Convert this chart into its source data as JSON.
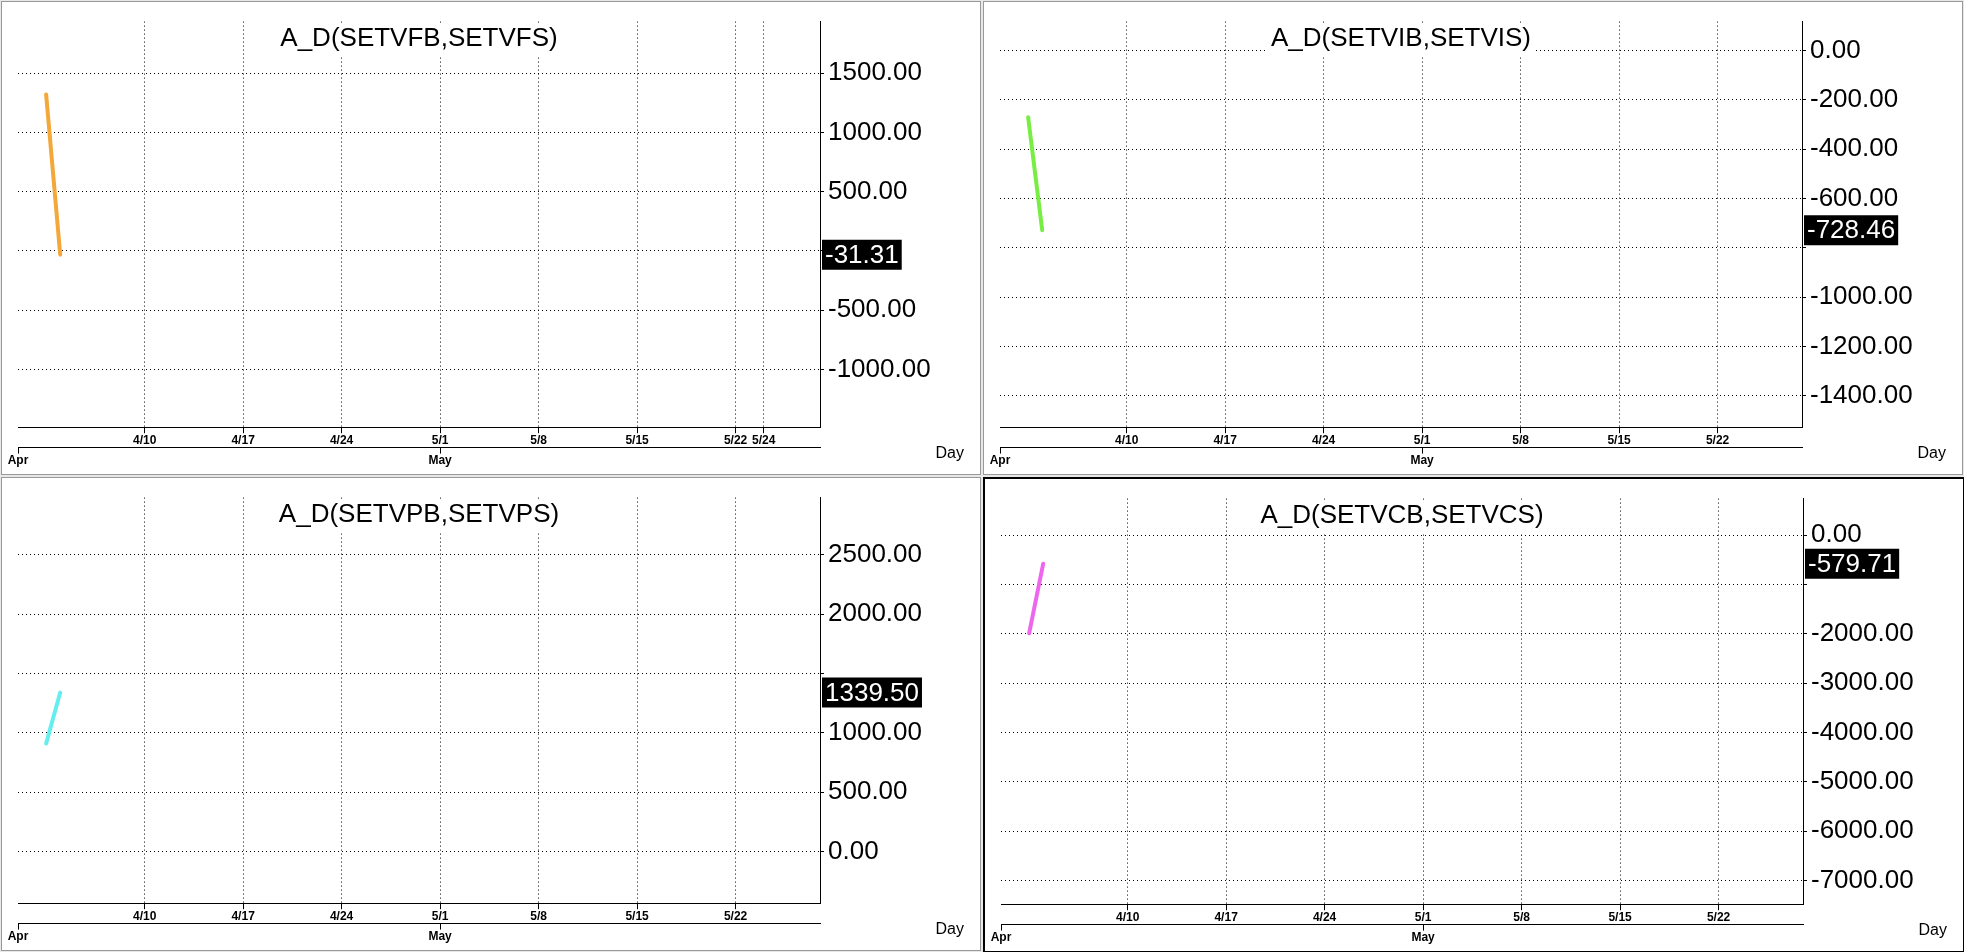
{
  "chart_data": [
    {
      "type": "line",
      "title": "A_D(SETVFB,SETVFS)",
      "xlabel": "Day",
      "x": [
        "--04-03",
        "--04-04"
      ],
      "series": [
        {
          "color": "#f4a83a",
          "values": [
            1320,
            -31.31
          ]
        }
      ],
      "annotations": [
        "-31.31"
      ],
      "xlim": [
        "--04-01",
        "--05-28"
      ],
      "xticks": [
        {
          "value": "--04-10",
          "label": "4/10"
        },
        {
          "value": "--04-17",
          "label": "4/17"
        },
        {
          "value": "--04-24",
          "label": "4/24"
        },
        {
          "value": "--05-01",
          "label": "5/1"
        },
        {
          "value": "--05-08",
          "label": "5/8"
        },
        {
          "value": "--05-15",
          "label": "5/15"
        },
        {
          "value": "--05-22",
          "label": "5/22"
        },
        {
          "value": "--05-24",
          "label": "5/24"
        }
      ],
      "x2lim": [
        "--04-01",
        "--05-28"
      ],
      "x2ticks": [
        {
          "value": "--04-01",
          "label": "Apr"
        },
        {
          "value": "--05-01",
          "label": "May"
        }
      ],
      "ylim": [
        -1487,
        1935
      ],
      "yticks": [
        {
          "value": 1500,
          "label": "1500.00"
        },
        {
          "value": 1000,
          "label": "1000.00"
        },
        {
          "value": 500,
          "label": "500.00"
        },
        {
          "value": 0,
          "label": null
        },
        {
          "value": -500,
          "label": "-500.00"
        },
        {
          "value": -1000,
          "label": "-1000.00"
        }
      ],
      "grid": true,
      "legend": false,
      "marker": "none",
      "line_style": "solid"
    },
    {
      "type": "line",
      "title": "A_D(SETVIB,SETVIS)",
      "xlabel": "Day",
      "x": [
        "--04-03",
        "--04-04"
      ],
      "series": [
        {
          "color": "#77ee44",
          "values": [
            -270,
            -728.46
          ]
        }
      ],
      "annotations": [
        "-728.46"
      ],
      "xlim": [
        "--04-01",
        "--05-28"
      ],
      "xticks": [
        {
          "value": "--04-10",
          "label": "4/10"
        },
        {
          "value": "--04-17",
          "label": "4/17"
        },
        {
          "value": "--04-24",
          "label": "4/24"
        },
        {
          "value": "--05-01",
          "label": "5/1"
        },
        {
          "value": "--05-08",
          "label": "5/8"
        },
        {
          "value": "--05-15",
          "label": "5/15"
        },
        {
          "value": "--05-22",
          "label": "5/22"
        }
      ],
      "x2lim": [
        "--04-01",
        "--05-28"
      ],
      "x2ticks": [
        {
          "value": "--04-01",
          "label": "Apr"
        },
        {
          "value": "--05-01",
          "label": "May"
        }
      ],
      "ylim": [
        -1528,
        118
      ],
      "yticks": [
        {
          "value": 0,
          "label": "0.00"
        },
        {
          "value": -200,
          "label": "-200.00"
        },
        {
          "value": -400,
          "label": "-400.00"
        },
        {
          "value": -600,
          "label": "-600.00"
        },
        {
          "value": -800,
          "label": null
        },
        {
          "value": -1000,
          "label": "-1000.00"
        },
        {
          "value": -1200,
          "label": "-1200.00"
        },
        {
          "value": -1400,
          "label": "-1400.00"
        }
      ],
      "grid": true,
      "legend": false,
      "marker": "none",
      "line_style": "solid"
    },
    {
      "type": "line",
      "title": "A_D(SETVPB,SETVPS)",
      "xlabel": "Day",
      "x": [
        "--04-03",
        "--04-04"
      ],
      "series": [
        {
          "color": "#66eeee",
          "values": [
            910,
            1339.5
          ]
        }
      ],
      "annotations": [
        "1339.50"
      ],
      "xlim": [
        "--04-01",
        "--05-28"
      ],
      "xticks": [
        {
          "value": "--04-10",
          "label": "4/10"
        },
        {
          "value": "--04-17",
          "label": "4/17"
        },
        {
          "value": "--04-24",
          "label": "4/24"
        },
        {
          "value": "--05-01",
          "label": "5/1"
        },
        {
          "value": "--05-08",
          "label": "5/8"
        },
        {
          "value": "--05-15",
          "label": "5/15"
        },
        {
          "value": "--05-22",
          "label": "5/22"
        }
      ],
      "x2lim": [
        "--04-01",
        "--05-28"
      ],
      "x2ticks": [
        {
          "value": "--04-01",
          "label": "Apr"
        },
        {
          "value": "--05-01",
          "label": "May"
        }
      ],
      "ylim": [
        -436,
        2983
      ],
      "yticks": [
        {
          "value": 2500,
          "label": "2500.00"
        },
        {
          "value": 2000,
          "label": "2000.00"
        },
        {
          "value": 1500,
          "label": null
        },
        {
          "value": 1000,
          "label": "1000.00"
        },
        {
          "value": 500,
          "label": "500.00"
        },
        {
          "value": 0,
          "label": "0.00"
        }
      ],
      "grid": true,
      "legend": false,
      "marker": "none",
      "line_style": "solid"
    },
    {
      "type": "line",
      "title": "A_D(SETVCB,SETVCS)",
      "xlabel": "Day",
      "x": [
        "--04-03",
        "--04-04"
      ],
      "series": [
        {
          "color": "#ee66ee",
          "values": [
            -1990,
            -579.71
          ]
        }
      ],
      "annotations": [
        "-579.71"
      ],
      "xlim": [
        "--04-01",
        "--05-28"
      ],
      "xticks": [
        {
          "value": "--04-10",
          "label": "4/10"
        },
        {
          "value": "--04-17",
          "label": "4/17"
        },
        {
          "value": "--04-24",
          "label": "4/24"
        },
        {
          "value": "--05-01",
          "label": "5/1"
        },
        {
          "value": "--05-08",
          "label": "5/8"
        },
        {
          "value": "--05-15",
          "label": "5/15"
        },
        {
          "value": "--05-22",
          "label": "5/22"
        }
      ],
      "x2lim": [
        "--04-01",
        "--05-28"
      ],
      "x2ticks": [
        {
          "value": "--04-01",
          "label": "Apr"
        },
        {
          "value": "--05-01",
          "label": "May"
        }
      ],
      "ylim": [
        -7481,
        740
      ],
      "yticks": [
        {
          "value": 0,
          "label": "0.00"
        },
        {
          "value": -1000,
          "label": null
        },
        {
          "value": -2000,
          "label": "-2000.00"
        },
        {
          "value": -3000,
          "label": "-3000.00"
        },
        {
          "value": -4000,
          "label": "-4000.00"
        },
        {
          "value": -5000,
          "label": "-5000.00"
        },
        {
          "value": -6000,
          "label": "-6000.00"
        },
        {
          "value": -7000,
          "label": "-7000.00"
        }
      ],
      "grid": true,
      "legend": false,
      "marker": "none",
      "line_style": "solid"
    }
  ]
}
